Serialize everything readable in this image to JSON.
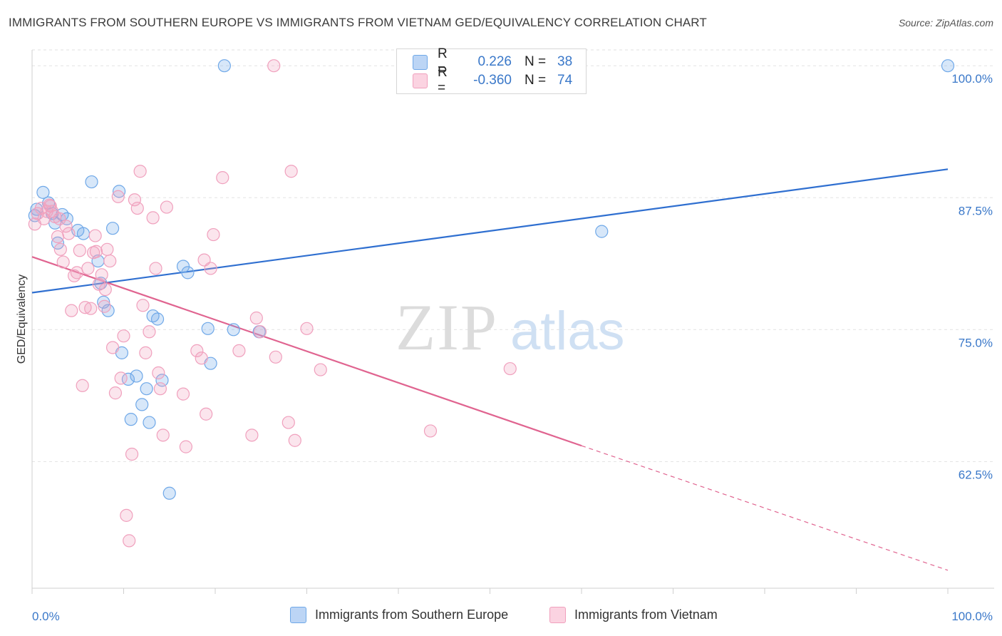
{
  "title": "IMMIGRANTS FROM SOUTHERN EUROPE VS IMMIGRANTS FROM VIETNAM GED/EQUIVALENCY CORRELATION CHART",
  "source": "Source: ZipAtlas.com",
  "watermark": {
    "zip": "ZIP",
    "atlas": "atlas"
  },
  "legend": {
    "rows": [
      {
        "r_label": "R =",
        "r_value": "0.226",
        "n_label": "N =",
        "n_value": "38",
        "color": "#6fa8e8"
      },
      {
        "r_label": "R =",
        "r_value": "-0.360",
        "n_label": "N =",
        "n_value": "74",
        "color": "#f0a0bd"
      }
    ]
  },
  "chart_data": {
    "type": "scatter",
    "title": "IMMIGRANTS FROM SOUTHERN EUROPE VS IMMIGRANTS FROM VIETNAM GED/EQUIVALENCY CORRELATION CHART",
    "xlabel": "",
    "ylabel": "GED/Equivalency",
    "xlim": [
      0,
      100
    ],
    "ylim": [
      50.5,
      101.5
    ],
    "x_tick_labels": [
      "0.0%",
      "100.0%"
    ],
    "y_ticks": [
      62.5,
      75.0,
      87.5,
      100.0
    ],
    "y_tick_labels": [
      "62.5%",
      "75.0%",
      "87.5%",
      "100.0%"
    ],
    "grid": true,
    "legend_position": "top-center",
    "series": [
      {
        "name": "Immigrants from Southern Europe",
        "color": "#6fa8e8",
        "line_color": "#2f6fd0",
        "trend": {
          "x": [
            0,
            100
          ],
          "y": [
            78.5,
            90.2
          ]
        },
        "points": [
          [
            0.3,
            85.8
          ],
          [
            0.5,
            86.4
          ],
          [
            1.2,
            88.0
          ],
          [
            1.8,
            87.0
          ],
          [
            2.2,
            86.0
          ],
          [
            2.5,
            85.1
          ],
          [
            2.8,
            83.2
          ],
          [
            3.3,
            85.9
          ],
          [
            3.8,
            85.5
          ],
          [
            5.0,
            84.4
          ],
          [
            5.6,
            84.1
          ],
          [
            6.5,
            89.0
          ],
          [
            7.5,
            79.4
          ],
          [
            7.2,
            81.5
          ],
          [
            7.8,
            77.6
          ],
          [
            8.3,
            76.8
          ],
          [
            8.8,
            84.6
          ],
          [
            9.5,
            88.1
          ],
          [
            9.8,
            72.8
          ],
          [
            10.5,
            70.3
          ],
          [
            10.8,
            66.5
          ],
          [
            11.4,
            70.6
          ],
          [
            12.0,
            67.9
          ],
          [
            12.5,
            69.4
          ],
          [
            12.8,
            66.2
          ],
          [
            13.2,
            76.3
          ],
          [
            13.7,
            76.0
          ],
          [
            14.2,
            70.2
          ],
          [
            16.5,
            81.0
          ],
          [
            17.0,
            80.4
          ],
          [
            19.2,
            75.1
          ],
          [
            19.5,
            71.8
          ],
          [
            21.0,
            100.0
          ],
          [
            22.0,
            75.0
          ],
          [
            24.8,
            74.8
          ],
          [
            15.0,
            59.5
          ],
          [
            62.2,
            84.3
          ],
          [
            100.0,
            100.0
          ]
        ]
      },
      {
        "name": "Immigrants from Vietnam",
        "color": "#f0a0bd",
        "line_color": "#e06490",
        "trend": {
          "x": [
            0,
            60
          ],
          "y": [
            81.9,
            64.0
          ]
        },
        "trend_dashed": {
          "x": [
            60,
            100
          ],
          "y": [
            64.0,
            52.2
          ]
        },
        "points": [
          [
            0.3,
            85.0
          ],
          [
            0.6,
            86.0
          ],
          [
            1.0,
            86.5
          ],
          [
            1.3,
            85.5
          ],
          [
            1.6,
            86.2
          ],
          [
            1.9,
            86.8
          ],
          [
            2.2,
            86.2
          ],
          [
            2.5,
            85.7
          ],
          [
            2.8,
            83.8
          ],
          [
            3.1,
            82.6
          ],
          [
            3.4,
            81.4
          ],
          [
            3.7,
            84.8
          ],
          [
            4.0,
            84.1
          ],
          [
            4.3,
            76.8
          ],
          [
            4.6,
            80.1
          ],
          [
            4.9,
            80.4
          ],
          [
            5.2,
            82.5
          ],
          [
            5.5,
            69.7
          ],
          [
            5.8,
            77.1
          ],
          [
            6.1,
            80.8
          ],
          [
            6.4,
            77.0
          ],
          [
            6.7,
            82.3
          ],
          [
            7.0,
            82.4
          ],
          [
            7.3,
            79.3
          ],
          [
            7.6,
            80.2
          ],
          [
            7.9,
            77.2
          ],
          [
            8.2,
            82.6
          ],
          [
            8.5,
            81.5
          ],
          [
            8.8,
            73.3
          ],
          [
            9.1,
            69.0
          ],
          [
            9.4,
            87.6
          ],
          [
            9.7,
            70.4
          ],
          [
            10.0,
            74.4
          ],
          [
            10.3,
            57.4
          ],
          [
            10.6,
            55.0
          ],
          [
            10.9,
            63.2
          ],
          [
            11.2,
            87.3
          ],
          [
            11.5,
            86.5
          ],
          [
            11.8,
            90.0
          ],
          [
            12.1,
            77.3
          ],
          [
            12.4,
            72.8
          ],
          [
            12.8,
            74.8
          ],
          [
            13.2,
            85.6
          ],
          [
            13.5,
            80.8
          ],
          [
            13.8,
            70.9
          ],
          [
            14.0,
            69.4
          ],
          [
            14.3,
            65.0
          ],
          [
            14.7,
            86.6
          ],
          [
            16.5,
            68.9
          ],
          [
            16.8,
            63.9
          ],
          [
            18.0,
            73.0
          ],
          [
            18.5,
            72.3
          ],
          [
            18.8,
            81.6
          ],
          [
            19.0,
            67.0
          ],
          [
            19.5,
            80.8
          ],
          [
            19.8,
            84.0
          ],
          [
            20.8,
            89.4
          ],
          [
            22.6,
            73.0
          ],
          [
            24.0,
            65.0
          ],
          [
            24.5,
            76.1
          ],
          [
            24.9,
            74.8
          ],
          [
            26.4,
            100.0
          ],
          [
            26.6,
            72.4
          ],
          [
            28.3,
            90.0
          ],
          [
            28.0,
            66.2
          ],
          [
            28.7,
            64.5
          ],
          [
            30.0,
            75.1
          ],
          [
            31.5,
            71.2
          ],
          [
            43.5,
            65.4
          ],
          [
            52.2,
            71.3
          ],
          [
            2.0,
            86.7
          ],
          [
            3.0,
            85.5
          ],
          [
            6.9,
            83.9
          ],
          [
            8.0,
            78.8
          ]
        ]
      }
    ]
  },
  "bottom_legend": [
    {
      "label": "Immigrants from Southern Europe",
      "color": "#6fa8e8"
    },
    {
      "label": "Immigrants from Vietnam",
      "color": "#f0a0bd"
    }
  ]
}
